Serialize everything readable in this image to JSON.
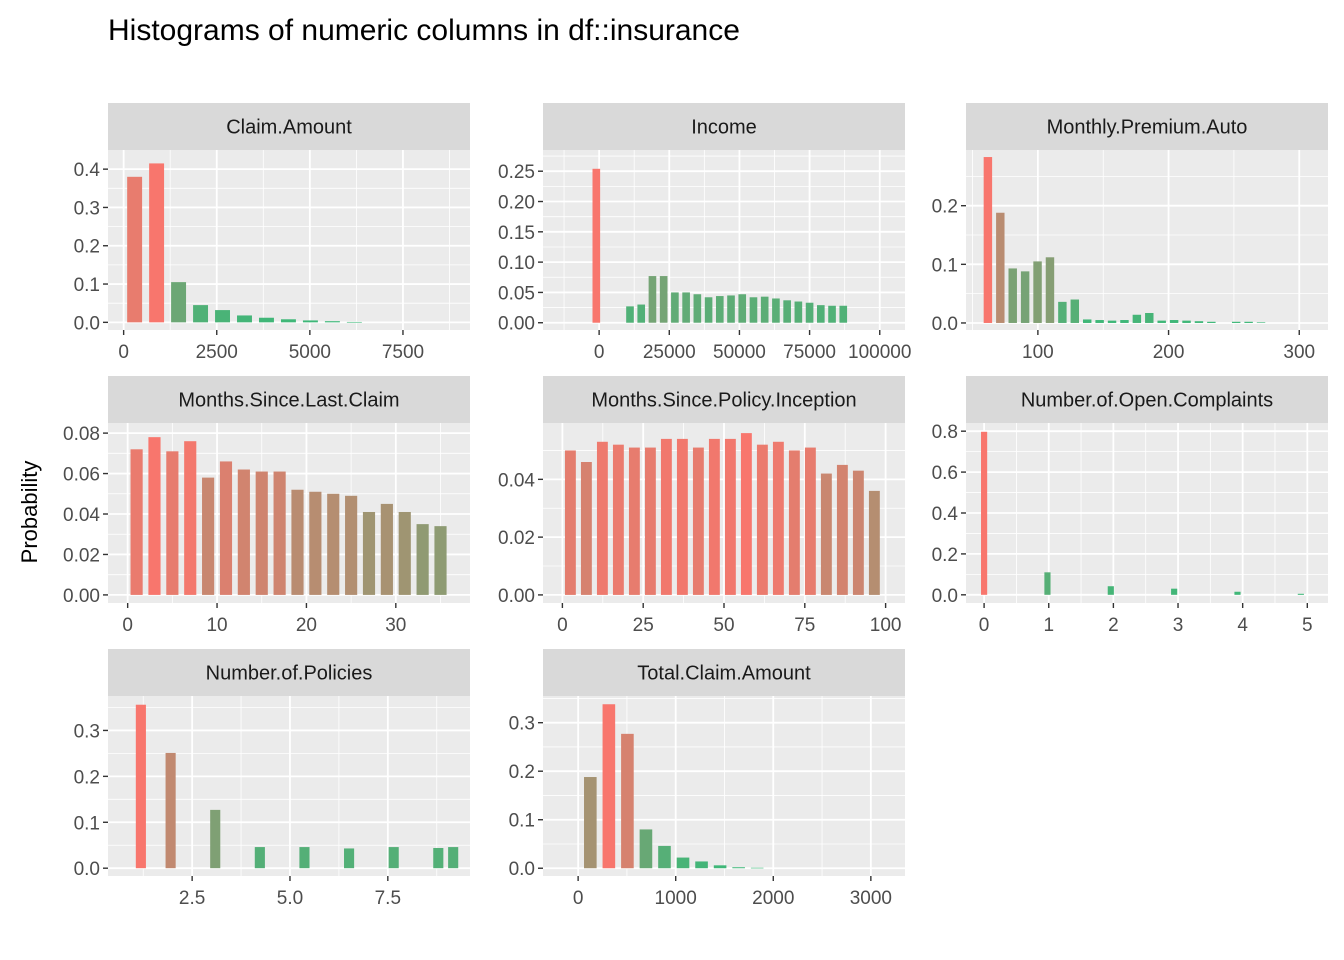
{
  "title": "Histograms of numeric columns in df::insurance",
  "ylabel": "Probability",
  "colors": {
    "panel_bg": "#ebebeb",
    "strip_bg": "#d9d9d9",
    "grid": "#ffffff",
    "high": "#f8766d",
    "low": "#3cb878"
  },
  "chart_data": [
    {
      "type": "bar",
      "title": "Claim.Amount",
      "xlim": [
        -420,
        9300
      ],
      "ylim": [
        -0.02,
        0.45
      ],
      "xticks": [
        0,
        2500,
        5000,
        7500
      ],
      "xtick_labels": [
        "0",
        "2500",
        "5000",
        "7500"
      ],
      "yticks": [
        0.0,
        0.1,
        0.2,
        0.3,
        0.4
      ],
      "ytick_labels": [
        "0.0",
        "0.1",
        "0.2",
        "0.3",
        "0.4"
      ],
      "bins": {
        "start": 0,
        "width": 590,
        "values": [
          0.38,
          0.415,
          0.105,
          0.045,
          0.032,
          0.018,
          0.012,
          0.008,
          0.005,
          0.003,
          0.001,
          0,
          0,
          0,
          0
        ]
      }
    },
    {
      "type": "bar",
      "title": "Income",
      "xlim": [
        -20000,
        109000
      ],
      "ylim": [
        -0.012,
        0.285
      ],
      "xticks": [
        0,
        25000,
        50000,
        75000,
        100000
      ],
      "xtick_labels": [
        "0",
        "25000",
        "50000",
        "75000",
        "100000"
      ],
      "yticks": [
        0.0,
        0.05,
        0.1,
        0.15,
        0.2,
        0.25
      ],
      "ytick_labels": [
        "0.00",
        "0.05",
        "0.10",
        "0.15",
        "0.20",
        "0.25"
      ],
      "bins": {
        "start": -3000,
        "width": 4000,
        "values": [
          0.254,
          0,
          0,
          0.027,
          0.03,
          0.077,
          0.077,
          0.05,
          0.05,
          0.047,
          0.042,
          0.044,
          0.045,
          0.047,
          0.042,
          0.043,
          0.04,
          0.037,
          0.035,
          0.033,
          0.029,
          0.028,
          0.028
        ]
      }
    },
    {
      "type": "bar",
      "title": "Monthly.Premium.Auto",
      "xlim": [
        45,
        322
      ],
      "ylim": [
        -0.012,
        0.295
      ],
      "xticks": [
        100,
        200,
        300
      ],
      "xtick_labels": [
        "100",
        "200",
        "300"
      ],
      "yticks": [
        0.0,
        0.1,
        0.2
      ],
      "ytick_labels": [
        "0.0",
        "0.1",
        "0.2"
      ],
      "bins": {
        "start": 57,
        "width": 9.5,
        "values": [
          0.283,
          0.188,
          0.093,
          0.088,
          0.105,
          0.112,
          0.036,
          0.04,
          0.006,
          0.005,
          0.004,
          0.005,
          0.014,
          0.017,
          0.004,
          0.005,
          0.004,
          0.003,
          0.002,
          0,
          0.002,
          0.002,
          0.001,
          0
        ]
      }
    },
    {
      "type": "bar",
      "title": "Months.Since.Last.Claim",
      "xlim": [
        -2.2,
        38.3
      ],
      "ylim": [
        -0.004,
        0.085
      ],
      "xticks": [
        0,
        10,
        20,
        30
      ],
      "xtick_labels": [
        "0",
        "10",
        "20",
        "30"
      ],
      "yticks": [
        0.0,
        0.02,
        0.04,
        0.06,
        0.08
      ],
      "ytick_labels": [
        "0.00",
        "0.02",
        "0.04",
        "0.06",
        "0.08"
      ],
      "bins": {
        "start": 0,
        "width": 2,
        "values": [
          0.072,
          0.078,
          0.071,
          0.076,
          0.058,
          0.066,
          0.062,
          0.061,
          0.061,
          0.052,
          0.051,
          0.05,
          0.049,
          0.041,
          0.045,
          0.041,
          0.035,
          0.034
        ]
      }
    },
    {
      "type": "bar",
      "title": "Months.Since.Policy.Inception",
      "xlim": [
        -6,
        106
      ],
      "ylim": [
        -0.0028,
        0.0595
      ],
      "xticks": [
        0,
        25,
        50,
        75,
        100
      ],
      "xtick_labels": [
        "0",
        "25",
        "50",
        "75",
        "100"
      ],
      "yticks": [
        0.0,
        0.02,
        0.04
      ],
      "ytick_labels": [
        "0.00",
        "0.02",
        "0.04"
      ],
      "bins": {
        "start": 0,
        "width": 4.95,
        "values": [
          0.05,
          0.046,
          0.053,
          0.052,
          0.051,
          0.051,
          0.054,
          0.054,
          0.051,
          0.054,
          0.054,
          0.056,
          0.052,
          0.053,
          0.05,
          0.051,
          0.042,
          0.045,
          0.043,
          0.036
        ]
      }
    },
    {
      "type": "bar",
      "title": "Number.of.Open.Complaints",
      "xlim": [
        -0.28,
        5.32
      ],
      "ylim": [
        -0.04,
        0.84
      ],
      "xticks": [
        0,
        1,
        2,
        3,
        4,
        5
      ],
      "xtick_labels": [
        "0",
        "1",
        "2",
        "3",
        "4",
        "5"
      ],
      "yticks": [
        0.0,
        0.2,
        0.4,
        0.6,
        0.8
      ],
      "ytick_labels": [
        "0.0",
        "0.2",
        "0.4",
        "0.6",
        "0.8"
      ],
      "bins": {
        "start": -0.07,
        "width": 0.14,
        "values": [
          0.797,
          0,
          0,
          0,
          0,
          0,
          0,
          0.11,
          0,
          0,
          0,
          0,
          0,
          0,
          0.042,
          0,
          0,
          0,
          0,
          0,
          0,
          0.03,
          0,
          0,
          0,
          0,
          0,
          0,
          0.015,
          0,
          0,
          0,
          0,
          0,
          0,
          0.005
        ]
      }
    },
    {
      "type": "bar",
      "title": "Number.of.Policies",
      "xlim": [
        0.35,
        9.6
      ],
      "ylim": [
        -0.017,
        0.375
      ],
      "xticks": [
        2.5,
        5.0,
        7.5
      ],
      "xtick_labels": [
        "2.5",
        "5.0",
        "7.5"
      ],
      "yticks": [
        0.0,
        0.1,
        0.2,
        0.3
      ],
      "ytick_labels": [
        "0.0",
        "0.1",
        "0.2",
        "0.3"
      ],
      "bins": {
        "start": 1,
        "width": 0.38,
        "values": [
          0.356,
          0,
          0.251,
          0,
          0,
          0.127,
          0,
          0,
          0.046,
          0,
          0,
          0.046,
          0,
          0,
          0.043,
          0,
          0,
          0.046,
          0,
          0,
          0.044,
          0.046
        ]
      }
    },
    {
      "type": "bar",
      "title": "Total.Claim.Amount",
      "xlim": [
        -360,
        3350
      ],
      "ylim": [
        -0.016,
        0.355
      ],
      "xticks": [
        0,
        1000,
        2000,
        3000
      ],
      "xtick_labels": [
        "0",
        "1000",
        "2000",
        "3000"
      ],
      "yticks": [
        0.0,
        0.1,
        0.2,
        0.3
      ],
      "ytick_labels": [
        "0.0",
        "0.1",
        "0.2",
        "0.3"
      ],
      "bins": {
        "start": 30,
        "width": 190,
        "values": [
          0.188,
          0.338,
          0.277,
          0.08,
          0.046,
          0.022,
          0.014,
          0.006,
          0.002,
          0.001,
          0,
          0,
          0,
          0,
          0,
          0
        ]
      }
    }
  ]
}
